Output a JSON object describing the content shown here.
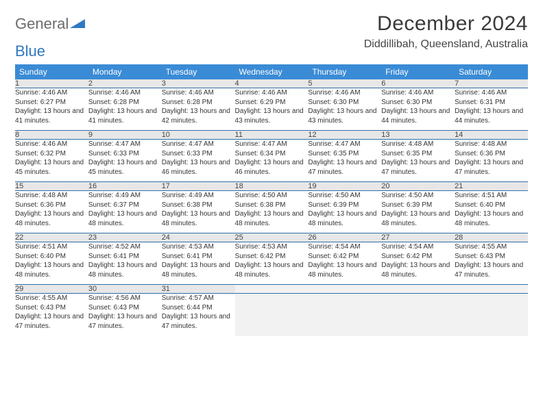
{
  "brand": {
    "part1": "General",
    "part2": "Blue",
    "logo_color": "#2f79c2"
  },
  "title": "December 2024",
  "location": "Diddillibah, Queensland, Australia",
  "colors": {
    "header_bg": "#3a8bd6",
    "header_fg": "#ffffff",
    "daynum_bg": "#e7e7e7",
    "week_divider": "#2f6fa8",
    "empty_bg": "#f2f2f2"
  },
  "day_headers": [
    "Sunday",
    "Monday",
    "Tuesday",
    "Wednesday",
    "Thursday",
    "Friday",
    "Saturday"
  ],
  "weeks": [
    [
      {
        "n": "1",
        "sr": "4:46 AM",
        "ss": "6:27 PM",
        "dl": "13 hours and 41 minutes."
      },
      {
        "n": "2",
        "sr": "4:46 AM",
        "ss": "6:28 PM",
        "dl": "13 hours and 41 minutes."
      },
      {
        "n": "3",
        "sr": "4:46 AM",
        "ss": "6:28 PM",
        "dl": "13 hours and 42 minutes."
      },
      {
        "n": "4",
        "sr": "4:46 AM",
        "ss": "6:29 PM",
        "dl": "13 hours and 43 minutes."
      },
      {
        "n": "5",
        "sr": "4:46 AM",
        "ss": "6:30 PM",
        "dl": "13 hours and 43 minutes."
      },
      {
        "n": "6",
        "sr": "4:46 AM",
        "ss": "6:30 PM",
        "dl": "13 hours and 44 minutes."
      },
      {
        "n": "7",
        "sr": "4:46 AM",
        "ss": "6:31 PM",
        "dl": "13 hours and 44 minutes."
      }
    ],
    [
      {
        "n": "8",
        "sr": "4:46 AM",
        "ss": "6:32 PM",
        "dl": "13 hours and 45 minutes."
      },
      {
        "n": "9",
        "sr": "4:47 AM",
        "ss": "6:33 PM",
        "dl": "13 hours and 45 minutes."
      },
      {
        "n": "10",
        "sr": "4:47 AM",
        "ss": "6:33 PM",
        "dl": "13 hours and 46 minutes."
      },
      {
        "n": "11",
        "sr": "4:47 AM",
        "ss": "6:34 PM",
        "dl": "13 hours and 46 minutes."
      },
      {
        "n": "12",
        "sr": "4:47 AM",
        "ss": "6:35 PM",
        "dl": "13 hours and 47 minutes."
      },
      {
        "n": "13",
        "sr": "4:48 AM",
        "ss": "6:35 PM",
        "dl": "13 hours and 47 minutes."
      },
      {
        "n": "14",
        "sr": "4:48 AM",
        "ss": "6:36 PM",
        "dl": "13 hours and 47 minutes."
      }
    ],
    [
      {
        "n": "15",
        "sr": "4:48 AM",
        "ss": "6:36 PM",
        "dl": "13 hours and 48 minutes."
      },
      {
        "n": "16",
        "sr": "4:49 AM",
        "ss": "6:37 PM",
        "dl": "13 hours and 48 minutes."
      },
      {
        "n": "17",
        "sr": "4:49 AM",
        "ss": "6:38 PM",
        "dl": "13 hours and 48 minutes."
      },
      {
        "n": "18",
        "sr": "4:50 AM",
        "ss": "6:38 PM",
        "dl": "13 hours and 48 minutes."
      },
      {
        "n": "19",
        "sr": "4:50 AM",
        "ss": "6:39 PM",
        "dl": "13 hours and 48 minutes."
      },
      {
        "n": "20",
        "sr": "4:50 AM",
        "ss": "6:39 PM",
        "dl": "13 hours and 48 minutes."
      },
      {
        "n": "21",
        "sr": "4:51 AM",
        "ss": "6:40 PM",
        "dl": "13 hours and 48 minutes."
      }
    ],
    [
      {
        "n": "22",
        "sr": "4:51 AM",
        "ss": "6:40 PM",
        "dl": "13 hours and 48 minutes."
      },
      {
        "n": "23",
        "sr": "4:52 AM",
        "ss": "6:41 PM",
        "dl": "13 hours and 48 minutes."
      },
      {
        "n": "24",
        "sr": "4:53 AM",
        "ss": "6:41 PM",
        "dl": "13 hours and 48 minutes."
      },
      {
        "n": "25",
        "sr": "4:53 AM",
        "ss": "6:42 PM",
        "dl": "13 hours and 48 minutes."
      },
      {
        "n": "26",
        "sr": "4:54 AM",
        "ss": "6:42 PM",
        "dl": "13 hours and 48 minutes."
      },
      {
        "n": "27",
        "sr": "4:54 AM",
        "ss": "6:42 PM",
        "dl": "13 hours and 48 minutes."
      },
      {
        "n": "28",
        "sr": "4:55 AM",
        "ss": "6:43 PM",
        "dl": "13 hours and 47 minutes."
      }
    ],
    [
      {
        "n": "29",
        "sr": "4:55 AM",
        "ss": "6:43 PM",
        "dl": "13 hours and 47 minutes."
      },
      {
        "n": "30",
        "sr": "4:56 AM",
        "ss": "6:43 PM",
        "dl": "13 hours and 47 minutes."
      },
      {
        "n": "31",
        "sr": "4:57 AM",
        "ss": "6:44 PM",
        "dl": "13 hours and 47 minutes."
      },
      null,
      null,
      null,
      null
    ]
  ],
  "labels": {
    "sunrise": "Sunrise:",
    "sunset": "Sunset:",
    "daylight": "Daylight:"
  }
}
